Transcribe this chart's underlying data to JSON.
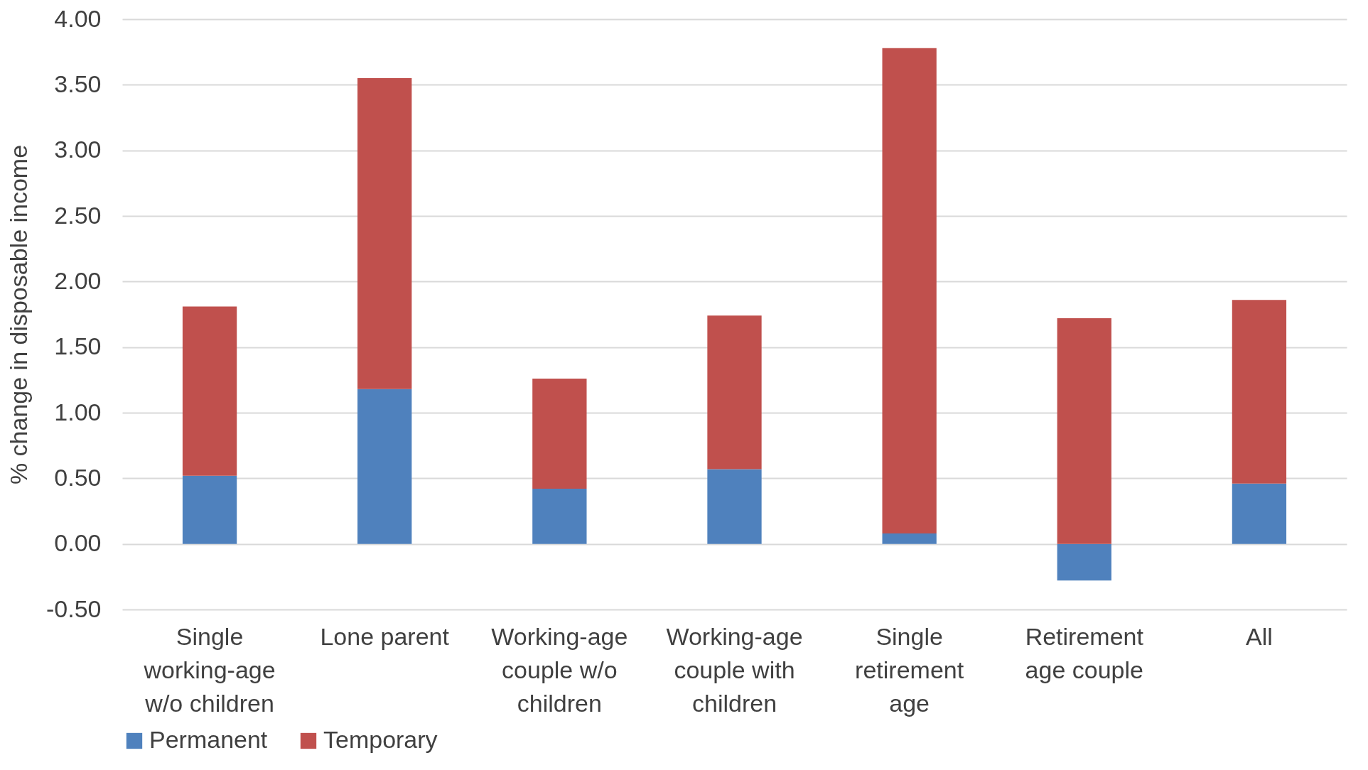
{
  "chart_data": {
    "type": "bar",
    "stacked": true,
    "ylabel": "% change in disposable income",
    "categories": [
      "Single working-age w/o children",
      "Lone parent",
      "Working-age couple w/o children",
      "Working-age couple with children",
      "Single retirement age",
      "Retirement age couple",
      "All"
    ],
    "series": [
      {
        "name": "Permanent",
        "color": "#4f81bd",
        "values": [
          0.52,
          1.18,
          0.42,
          0.57,
          0.08,
          -0.28,
          0.46
        ]
      },
      {
        "name": "Temporary",
        "color": "#c0504d",
        "values": [
          1.29,
          2.37,
          0.84,
          1.17,
          3.7,
          1.72,
          1.4
        ]
      }
    ],
    "ylim": [
      -0.5,
      4
    ],
    "yticks": [
      {
        "value": -0.5,
        "label": "-0.50"
      },
      {
        "value": 0,
        "label": "0.00"
      },
      {
        "value": 0.5,
        "label": "0.50"
      },
      {
        "value": 1,
        "label": "1.00"
      },
      {
        "value": 1.5,
        "label": "1.50"
      },
      {
        "value": 2,
        "label": "2.00"
      },
      {
        "value": 2.5,
        "label": "2.50"
      },
      {
        "value": 3,
        "label": "3.00"
      },
      {
        "value": 3.5,
        "label": "3.50"
      },
      {
        "value": 4,
        "label": "4.00"
      }
    ],
    "grid": "y",
    "legend": "bottom"
  }
}
